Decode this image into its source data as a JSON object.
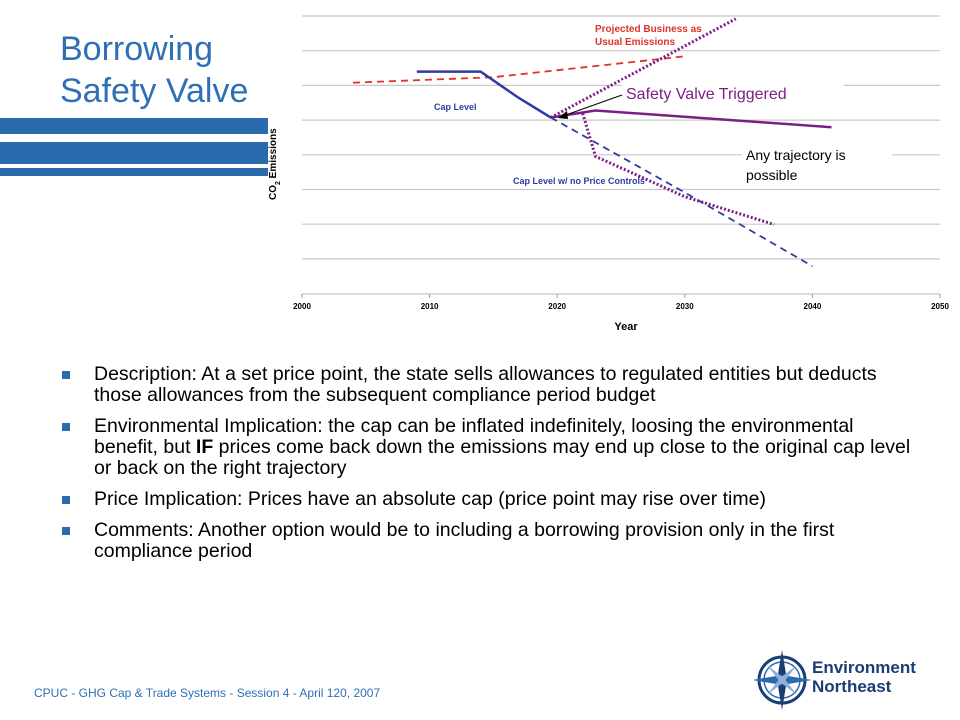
{
  "slide": {
    "title_line1": "Borrowing",
    "title_line2": "Safety Valve"
  },
  "chart_data": {
    "type": "line",
    "xlabel": "Year",
    "ylabel": "CO2 Emissions",
    "x_ticks": [
      "2000",
      "2010",
      "2020",
      "2030",
      "2040",
      "2050"
    ],
    "xlim": [
      2000,
      2050
    ],
    "grid": true,
    "series": [
      {
        "name": "Projected Business as Usual Emissions",
        "color": "#e0312b",
        "style": "dashed",
        "points": [
          [
            2004,
            92
          ],
          [
            2015,
            96
          ],
          [
            2030,
            111
          ]
        ]
      },
      {
        "name": "Cap Level",
        "color": "#2f3ba0",
        "style": "solid",
        "points": [
          [
            2009,
            100
          ],
          [
            2014,
            100
          ],
          [
            2017,
            81
          ],
          [
            2019.5,
            67
          ]
        ]
      },
      {
        "name": "Cap Level w/ no Price Controls",
        "color": "#2f3ba0",
        "style": "dashed",
        "points": [
          [
            2019.5,
            67
          ],
          [
            2030,
            13
          ],
          [
            2040,
            -40
          ]
        ]
      },
      {
        "name": "Safety Valve Triggered",
        "color": "#7b1f86",
        "style": "solid",
        "points": [
          [
            2019.5,
            67
          ],
          [
            2023,
            72
          ],
          [
            2041.5,
            60
          ]
        ]
      },
      {
        "name": "upper trajectory",
        "color": "#7b1f86",
        "style": "dotted",
        "points": [
          [
            2019.5,
            67
          ],
          [
            2034,
            138
          ]
        ]
      },
      {
        "name": "lower trajectory",
        "color": "#7b1f86",
        "style": "dotted",
        "points": [
          [
            2022,
            70
          ],
          [
            2023,
            39
          ],
          [
            2030,
            10
          ],
          [
            2037,
            -10
          ]
        ]
      }
    ],
    "annotations": {
      "bau_line1": "Projected Business as",
      "bau_line2": "Usual Emissions",
      "cap_level": "Cap Level",
      "cap_no_controls": "Cap Level w/ no Price Controls",
      "safety_valve": "Safety Valve Triggered",
      "any_traj_line1": "Any trajectory is",
      "any_traj_line2": "possible",
      "ylabel_co": "CO",
      "ylabel_sub": "2",
      "ylabel_rest": " Emissions"
    }
  },
  "bullets": [
    {
      "parts": [
        "Description: At a set price point, the state sells allowances to regulated entities but deducts those allowances from the subsequent compliance period budget"
      ]
    },
    {
      "pre": "Environmental Implication: the cap can be inflated indefinitely, loosing the environmental benefit, but ",
      "bold": "IF",
      "post": " prices come back down the emissions may end up close to the original cap level or back on the right trajectory"
    },
    {
      "parts": [
        "Price Implication: Prices have an absolute cap (price point may rise over time)"
      ]
    },
    {
      "parts": [
        "Comments: Another option would be to including a borrowing provision only in the first compliance  period"
      ]
    }
  ],
  "footer": "CPUC - GHG Cap & Trade Systems - Session 4 - April 120, 2007",
  "logo": {
    "line1": "Environment",
    "line2": "Northeast"
  },
  "colors": {
    "title": "#2e6fb6",
    "bullet": "#2a6aad",
    "bau": "#e0312b",
    "cap": "#2f3ba0",
    "valve": "#7b1f86"
  }
}
